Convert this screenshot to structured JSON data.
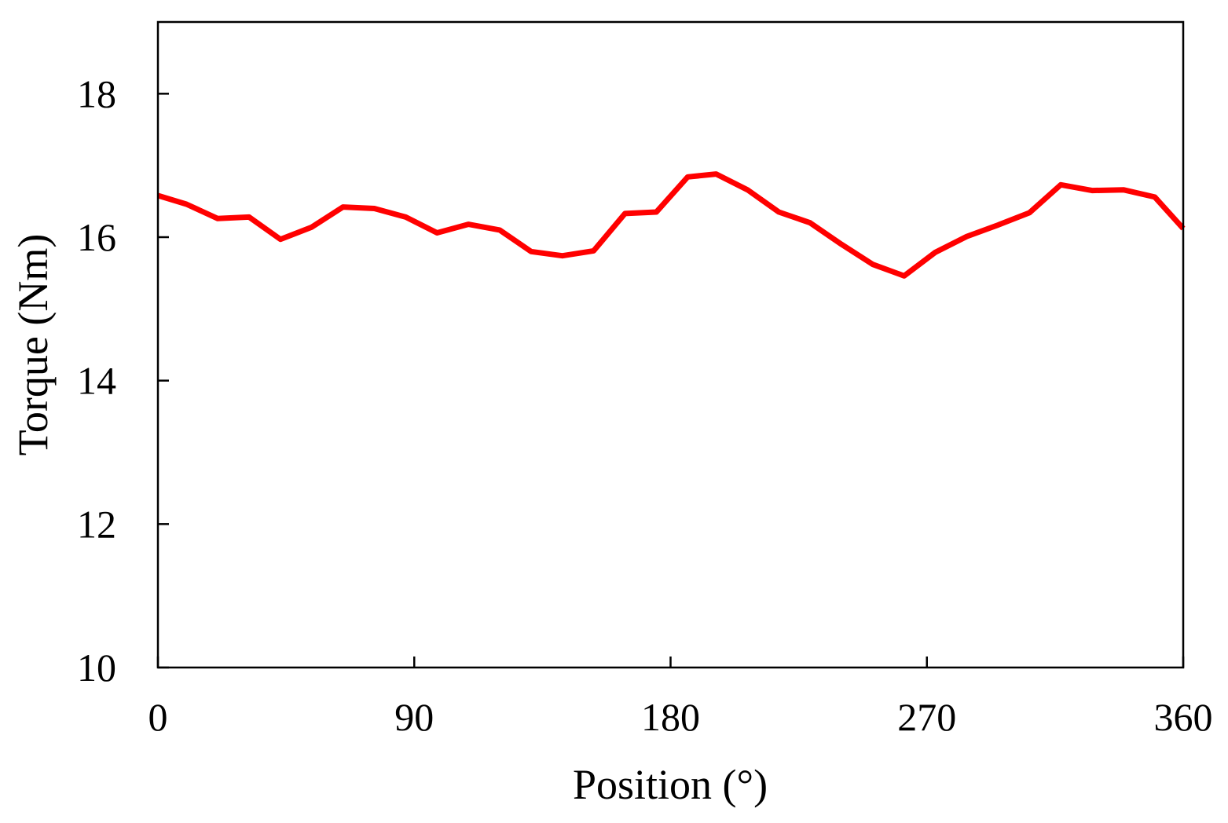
{
  "chart_data": {
    "type": "line",
    "title": "",
    "xlabel": "Position (°)",
    "ylabel": "Torque (Nm)",
    "xlim": [
      0,
      360
    ],
    "ylim": [
      10,
      19
    ],
    "xticks": [
      0,
      90,
      180,
      270,
      360
    ],
    "xtick_labels": [
      "0",
      "90",
      "180",
      "270",
      "360"
    ],
    "yticks": [
      10,
      12,
      14,
      16,
      18
    ],
    "ytick_labels": [
      "10",
      "12",
      "14",
      "16",
      "18"
    ],
    "grid": false,
    "legend": "none",
    "series": [
      {
        "color": "#ff0000",
        "x": [
          0,
          10,
          21,
          32,
          43,
          54,
          65,
          76,
          87,
          98,
          109,
          120,
          131,
          142,
          153,
          164,
          175,
          186,
          196,
          207,
          218,
          229,
          240,
          251,
          262,
          273,
          284,
          295,
          306,
          317,
          328,
          339,
          350,
          360
        ],
        "y": [
          16.58,
          16.46,
          16.26,
          16.28,
          15.97,
          16.14,
          16.42,
          16.4,
          16.28,
          16.06,
          16.18,
          16.1,
          15.8,
          15.74,
          15.81,
          16.33,
          16.35,
          16.84,
          16.88,
          16.66,
          16.35,
          16.2,
          15.9,
          15.62,
          15.46,
          15.79,
          16.01,
          16.17,
          16.34,
          16.73,
          16.65,
          16.66,
          16.56,
          16.12
        ]
      }
    ]
  }
}
